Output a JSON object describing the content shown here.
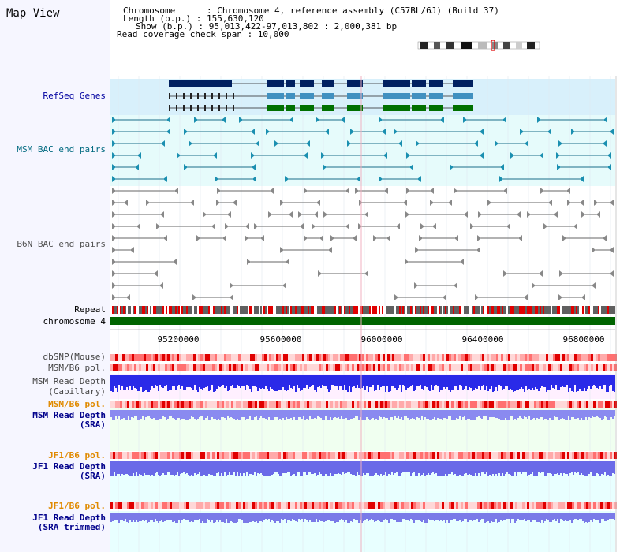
{
  "view_title": "Map View",
  "header": {
    "chromosome_line": "Chromosome      : Chromosome 4, reference assembly (C57BL/6J) (Build 37)",
    "length_line": "Length (b.p.) : 155,630,120",
    "show_line": "Show (b.p.) : 95,013,422-97,013,802 : 2,000,381 bp",
    "span_line": "Read coverage check span : 10,000"
  },
  "tracks": {
    "refseq_genes": "RefSeq Genes",
    "msm_bac": "MSM BAC end pairs",
    "b6n_bac": "B6N BAC end pairs",
    "repeat": "Repeat",
    "chromosome": "chromosome 4",
    "dbsnp": "dbSNP(Mouse)",
    "msm_b6_pol_1": "MSM/B6 pol.",
    "msm_read_depth_cap_1": "MSM Read Depth",
    "msm_read_depth_cap_2": "(Capillary)",
    "msm_b6_pol_2": "MSM/B6 pol.",
    "msm_read_depth_sra_1": "MSM Read Depth",
    "msm_read_depth_sra_2": "(SRA)",
    "jf1_b6_pol_1": "JF1/B6 pol.",
    "jf1_read_depth_sra_1": "JF1 Read Depth",
    "jf1_read_depth_sra_2": "(SRA)",
    "jf1_b6_pol_2": "JF1/B6 pol.",
    "jf1_read_depth_trim_1": "JF1 Read Depth",
    "jf1_read_depth_trim_2": "(SRA trimmed)"
  },
  "axis_ticks": [
    "95200000",
    "95600000",
    "96000000",
    "96400000",
    "96800000"
  ],
  "colors": {
    "refseq_label": "#0000a0",
    "msm_label": "#006a80",
    "b6n_label": "#505050",
    "orange_label": "#e08a00",
    "navy_label": "#00008b",
    "refseq_bg": "#d8f0fb",
    "msm_bg": "#e6fbfb",
    "chromosome": "#006400"
  }
}
